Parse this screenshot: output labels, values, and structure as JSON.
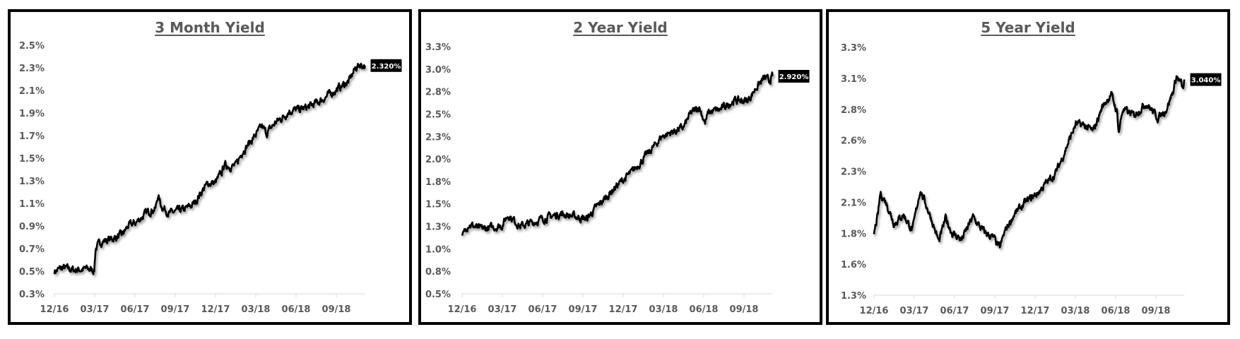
{
  "chart_data": [
    {
      "type": "line",
      "title": "3 Month Yield",
      "y_tick_labels": [
        "0.3%",
        "0.5%",
        "0.7%",
        "0.9%",
        "1.1%",
        "1.3%",
        "1.5%",
        "1.7%",
        "1.9%",
        "2.1%",
        "2.3%",
        "2.5%"
      ],
      "ylim": [
        0.3,
        2.5
      ],
      "x_tick_labels": [
        "12/16",
        "03/17",
        "06/17",
        "09/17",
        "12/17",
        "03/18",
        "06/18",
        "09/18"
      ],
      "grid": false,
      "last_value_label": "2.320%",
      "line_color": "#000000",
      "points": [
        [
          "2016-12-01",
          0.5
        ],
        [
          "2016-12-20",
          0.53
        ],
        [
          "2017-01-15",
          0.51
        ],
        [
          "2017-02-10",
          0.52
        ],
        [
          "2017-02-28",
          0.51
        ],
        [
          "2017-03-03",
          0.7
        ],
        [
          "2017-03-15",
          0.76
        ],
        [
          "2017-04-10",
          0.79
        ],
        [
          "2017-05-01",
          0.82
        ],
        [
          "2017-05-15",
          0.9
        ],
        [
          "2017-06-01",
          0.93
        ],
        [
          "2017-06-20",
          1.0
        ],
        [
          "2017-07-05",
          1.04
        ],
        [
          "2017-07-15",
          1.05
        ],
        [
          "2017-07-20",
          1.17
        ],
        [
          "2017-07-28",
          1.08
        ],
        [
          "2017-08-15",
          1.01
        ],
        [
          "2017-09-01",
          1.03
        ],
        [
          "2017-09-20",
          1.05
        ],
        [
          "2017-10-10",
          1.1
        ],
        [
          "2017-10-25",
          1.2
        ],
        [
          "2017-11-10",
          1.28
        ],
        [
          "2017-11-25",
          1.28
        ],
        [
          "2017-12-10",
          1.37
        ],
        [
          "2017-12-15",
          1.44
        ],
        [
          "2017-12-30",
          1.43
        ],
        [
          "2018-01-10",
          1.43
        ],
        [
          "2018-01-25",
          1.56
        ],
        [
          "2018-02-15",
          1.66
        ],
        [
          "2018-03-10",
          1.78
        ],
        [
          "2018-03-20",
          1.72
        ],
        [
          "2018-04-10",
          1.82
        ],
        [
          "2018-04-25",
          1.86
        ],
        [
          "2018-05-10",
          1.92
        ],
        [
          "2018-06-01",
          1.93
        ],
        [
          "2018-06-20",
          1.95
        ],
        [
          "2018-07-15",
          2.0
        ],
        [
          "2018-08-10",
          2.07
        ],
        [
          "2018-09-01",
          2.13
        ],
        [
          "2018-09-20",
          2.18
        ],
        [
          "2018-10-05",
          2.3
        ],
        [
          "2018-10-15",
          2.33
        ],
        [
          "2018-10-26",
          2.32
        ]
      ]
    },
    {
      "type": "line",
      "title": "2 Year Yield",
      "y_tick_labels": [
        "0.5%",
        "0.8%",
        "1.0%",
        "1.3%",
        "1.5%",
        "1.8%",
        "2.0%",
        "2.3%",
        "2.5%",
        "2.8%",
        "3.0%",
        "3.3%"
      ],
      "ylim": [
        0.5,
        3.25
      ],
      "x_tick_labels": [
        "12/16",
        "03/17",
        "06/17",
        "09/17",
        "12/17",
        "03/18",
        "06/18",
        "09/18"
      ],
      "grid": false,
      "last_value_label": "2.920%",
      "line_color": "#000000",
      "points": [
        [
          "2016-12-01",
          1.12
        ],
        [
          "2016-12-15",
          1.28
        ],
        [
          "2017-01-10",
          1.22
        ],
        [
          "2017-02-10",
          1.24
        ],
        [
          "2017-02-28",
          1.26
        ],
        [
          "2017-03-14",
          1.38
        ],
        [
          "2017-04-10",
          1.25
        ],
        [
          "2017-05-10",
          1.3
        ],
        [
          "2017-06-10",
          1.35
        ],
        [
          "2017-07-10",
          1.39
        ],
        [
          "2017-08-10",
          1.36
        ],
        [
          "2017-09-05",
          1.33
        ],
        [
          "2017-09-25",
          1.45
        ],
        [
          "2017-10-20",
          1.58
        ],
        [
          "2017-11-15",
          1.72
        ],
        [
          "2017-12-15",
          1.85
        ],
        [
          "2018-01-10",
          2.0
        ],
        [
          "2018-02-05",
          2.15
        ],
        [
          "2018-02-20",
          2.25
        ],
        [
          "2018-03-15",
          2.3
        ],
        [
          "2018-04-10",
          2.35
        ],
        [
          "2018-04-25",
          2.5
        ],
        [
          "2018-05-15",
          2.58
        ],
        [
          "2018-05-28",
          2.4
        ],
        [
          "2018-06-05",
          2.52
        ],
        [
          "2018-07-01",
          2.55
        ],
        [
          "2018-08-01",
          2.65
        ],
        [
          "2018-09-01",
          2.65
        ],
        [
          "2018-09-20",
          2.8
        ],
        [
          "2018-10-08",
          2.9
        ],
        [
          "2018-10-18",
          2.87
        ],
        [
          "2018-10-26",
          2.92
        ]
      ]
    },
    {
      "type": "line",
      "title": "5 Year Yield",
      "y_tick_labels": [
        "1.3%",
        "1.6%",
        "1.8%",
        "2.1%",
        "2.3%",
        "2.6%",
        "2.8%",
        "3.1%",
        "3.3%"
      ],
      "ylim": [
        1.3,
        3.3
      ],
      "x_tick_labels": [
        "12/16",
        "03/17",
        "06/17",
        "09/17",
        "12/17",
        "03/18",
        "06/18",
        "09/18"
      ],
      "grid": false,
      "last_value_label": "3.040%",
      "line_color": "#000000",
      "points": [
        [
          "2016-12-01",
          1.8
        ],
        [
          "2016-12-10",
          1.95
        ],
        [
          "2016-12-15",
          2.12
        ],
        [
          "2016-12-28",
          2.05
        ],
        [
          "2017-01-15",
          1.88
        ],
        [
          "2017-02-05",
          1.95
        ],
        [
          "2017-02-25",
          1.82
        ],
        [
          "2017-03-14",
          2.15
        ],
        [
          "2017-04-05",
          1.95
        ],
        [
          "2017-04-25",
          1.73
        ],
        [
          "2017-05-10",
          1.92
        ],
        [
          "2017-05-25",
          1.8
        ],
        [
          "2017-06-15",
          1.75
        ],
        [
          "2017-07-10",
          1.93
        ],
        [
          "2017-08-01",
          1.82
        ],
        [
          "2017-08-25",
          1.76
        ],
        [
          "2017-09-08",
          1.68
        ],
        [
          "2017-09-20",
          1.82
        ],
        [
          "2017-10-10",
          1.95
        ],
        [
          "2017-11-05",
          2.05
        ],
        [
          "2017-12-01",
          2.12
        ],
        [
          "2017-12-20",
          2.2
        ],
        [
          "2018-01-10",
          2.28
        ],
        [
          "2018-01-25",
          2.4
        ],
        [
          "2018-02-10",
          2.55
        ],
        [
          "2018-02-25",
          2.68
        ],
        [
          "2018-03-15",
          2.67
        ],
        [
          "2018-04-05",
          2.62
        ],
        [
          "2018-04-25",
          2.82
        ],
        [
          "2018-05-15",
          2.92
        ],
        [
          "2018-05-28",
          2.78
        ],
        [
          "2018-06-01",
          2.62
        ],
        [
          "2018-06-10",
          2.8
        ],
        [
          "2018-07-05",
          2.75
        ],
        [
          "2018-08-01",
          2.85
        ],
        [
          "2018-08-28",
          2.73
        ],
        [
          "2018-09-15",
          2.8
        ],
        [
          "2018-10-01",
          2.95
        ],
        [
          "2018-10-08",
          3.07
        ],
        [
          "2018-10-18",
          3.01
        ],
        [
          "2018-10-22",
          2.95
        ],
        [
          "2018-10-26",
          3.04
        ]
      ]
    }
  ]
}
